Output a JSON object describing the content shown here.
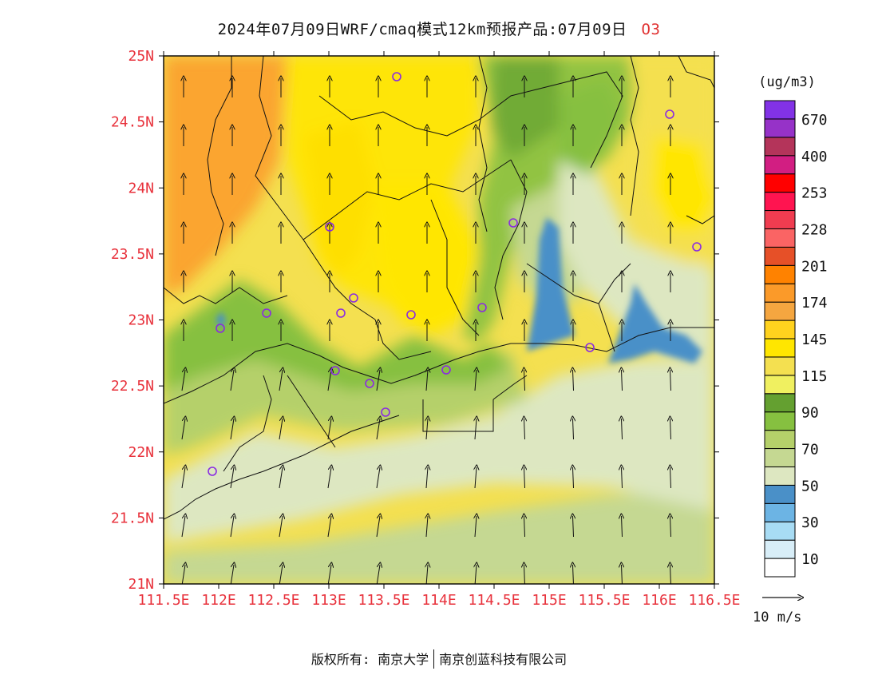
{
  "title": {
    "text": "2024年07月09日WRF/cmaq模式12km预报产品:07月09日",
    "pollutant": "O3"
  },
  "map": {
    "lat_labels": [
      "25N",
      "24.5N",
      "24N",
      "23.5N",
      "23N",
      "22.5N",
      "22N",
      "21.5N",
      "21N"
    ],
    "lon_labels": [
      "111.5E",
      "112E",
      "112.5E",
      "113E",
      "113.5E",
      "114E",
      "114.5E",
      "115E",
      "115.5E",
      "116E",
      "116.5E"
    ],
    "label_color": "#e8323c"
  },
  "legend": {
    "unit": "(ug/m3)",
    "colors": [
      "#ffffff",
      "#d8eef8",
      "#a8dcf4",
      "#6cb4e4",
      "#4a90c8",
      "#dde7c1",
      "#c5d892",
      "#b5d06a",
      "#86c040",
      "#64a030",
      "#f0f060",
      "#f4e050",
      "#ffe600",
      "#ffd21e",
      "#f5a640",
      "#fb9a29",
      "#ff8200",
      "#e65028",
      "#fa6464",
      "#f03c50",
      "#ff1450",
      "#ff0000",
      "#d21e82",
      "#b4345a",
      "#9632c8",
      "#8232e6"
    ],
    "tick_labels": [
      "10",
      "30",
      "50",
      "70",
      "90",
      "115",
      "145",
      "174",
      "201",
      "228",
      "253",
      "400",
      "670"
    ]
  },
  "wind_scale": {
    "label": "10 m/s"
  },
  "copyright": {
    "owner": "版权所有: 南京大学",
    "company": "南京创蓝科技有限公司"
  }
}
